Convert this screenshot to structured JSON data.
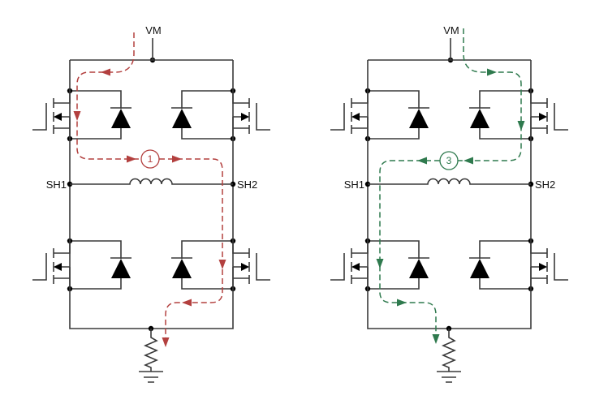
{
  "labels": {
    "supply": "VM",
    "left_node": "SH1",
    "right_node": "SH2"
  },
  "bridges": [
    {
      "current_path": {
        "step": "1",
        "color": "#b3403f"
      }
    },
    {
      "current_path": {
        "step": "3",
        "color": "#2f7a4e"
      }
    }
  ],
  "colors": {
    "wire": "#3a3a3a"
  }
}
